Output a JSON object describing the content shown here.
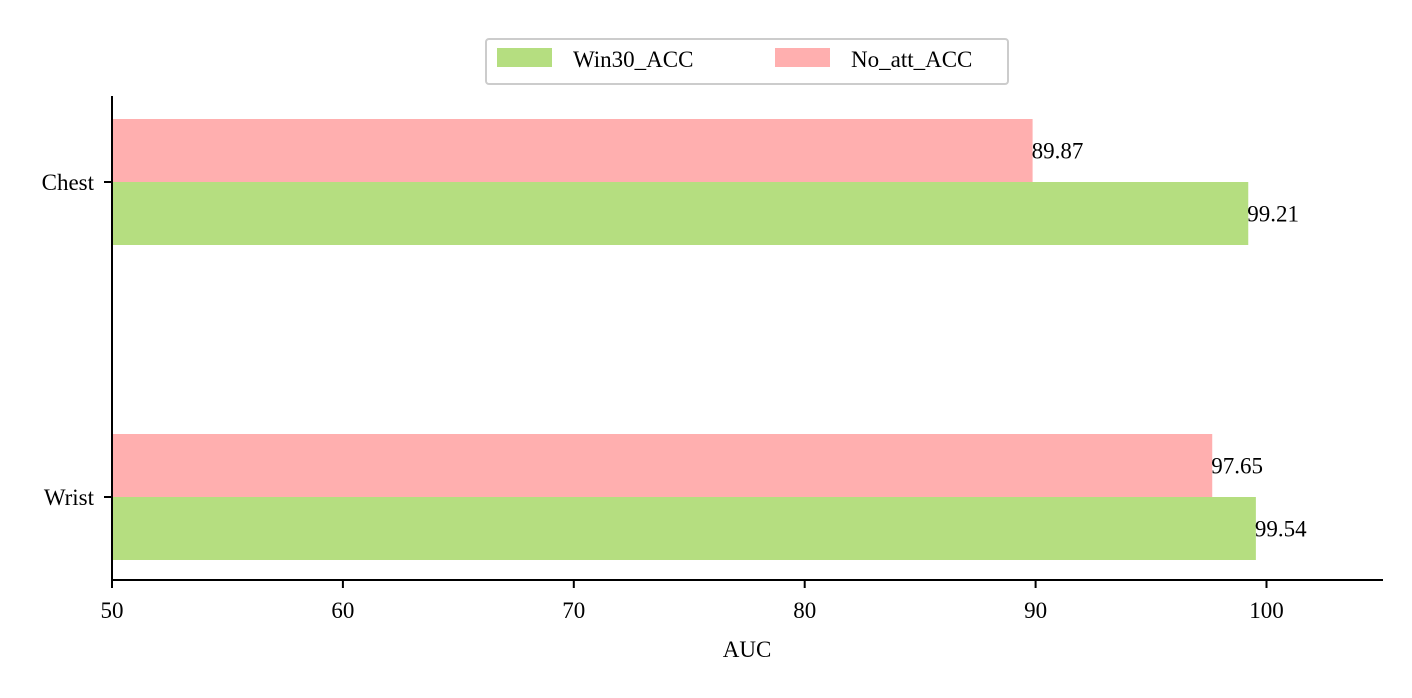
{
  "chart_data": {
    "type": "bar",
    "orientation": "horizontal",
    "categories": [
      "Chest",
      "Wrist"
    ],
    "series": [
      {
        "name": "Win30_ACC",
        "values": [
          99.21,
          99.54
        ],
        "color": "#b5de80"
      },
      {
        "name": "No_att_ACC",
        "values": [
          89.87,
          97.65
        ],
        "color": "#ffafaf"
      }
    ],
    "data_labels": {
      "Win30_ACC": [
        "99.21",
        "99.54"
      ],
      "No_att_ACC": [
        "89.87",
        "97.65"
      ]
    },
    "xlabel": "AUC",
    "ylabel": "",
    "xlim": [
      50,
      105
    ],
    "xticks": [
      50,
      60,
      70,
      80,
      90,
      100
    ],
    "xtick_labels": [
      "50",
      "60",
      "70",
      "80",
      "90",
      "100"
    ],
    "grid": false,
    "legend_position": "top-center"
  }
}
